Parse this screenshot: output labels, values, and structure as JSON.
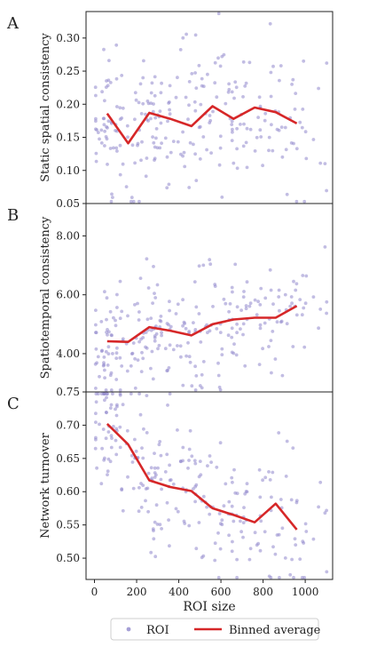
{
  "chart_data": [
    {
      "type": "scatter",
      "panel_label": "A",
      "ylabel": "Static spatial consistency",
      "xlim": [
        -40,
        1130
      ],
      "ylim": [
        0.05,
        0.34
      ],
      "yticks": [
        0.05,
        0.1,
        0.15,
        0.2,
        0.25,
        0.3
      ],
      "ytick_labels": [
        "0.05",
        "0.10",
        "0.15",
        "0.20",
        "0.25",
        "0.30"
      ],
      "grid": false,
      "series": [
        {
          "name": "Binned average",
          "x": [
            60,
            160,
            260,
            360,
            460,
            560,
            660,
            760,
            860,
            960
          ],
          "y": [
            0.186,
            0.141,
            0.187,
            0.178,
            0.167,
            0.197,
            0.178,
            0.195,
            0.188,
            0.171
          ]
        }
      ]
    },
    {
      "type": "scatter",
      "panel_label": "B",
      "ylabel": "Spatiotemporal consistency",
      "xlim": [
        -40,
        1130
      ],
      "ylim": [
        2.7,
        9.1
      ],
      "yticks": [
        4.0,
        6.0,
        8.0
      ],
      "ytick_labels": [
        "4.00",
        "6.00",
        "8.00"
      ],
      "grid": false,
      "series": [
        {
          "name": "Binned average",
          "x": [
            60,
            160,
            260,
            360,
            460,
            560,
            660,
            760,
            860,
            960
          ],
          "y": [
            4.42,
            4.4,
            4.9,
            4.78,
            4.62,
            5.0,
            5.16,
            5.22,
            5.22,
            5.62
          ]
        }
      ]
    },
    {
      "type": "scatter",
      "panel_label": "C",
      "ylabel": "Network turnover",
      "xlabel": "ROI size",
      "xlim": [
        -40,
        1130
      ],
      "xticks": [
        0,
        200,
        400,
        600,
        800,
        1000
      ],
      "xtick_labels": [
        "0",
        "200",
        "400",
        "600",
        "800",
        "1000"
      ],
      "ylim": [
        0.468,
        0.75
      ],
      "yticks": [
        0.5,
        0.55,
        0.6,
        0.65,
        0.7,
        0.75
      ],
      "ytick_labels": [
        "0.50",
        "0.55",
        "0.60",
        "0.65",
        "0.70",
        "0.75"
      ],
      "grid": false,
      "series": [
        {
          "name": "Binned average",
          "x": [
            60,
            160,
            260,
            360,
            460,
            560,
            660,
            760,
            860,
            960
          ],
          "y": [
            0.702,
            0.671,
            0.617,
            0.607,
            0.601,
            0.575,
            0.565,
            0.554,
            0.582,
            0.543
          ]
        }
      ]
    }
  ],
  "legend": {
    "placement": "bottom",
    "items": [
      {
        "label": "ROI",
        "marker": "dot",
        "color": "#8f87cc"
      },
      {
        "label": "Binned average",
        "marker": "line",
        "color": "#d62728"
      }
    ]
  },
  "colors": {
    "scatter": "#8f87cc",
    "average": "#d62728"
  }
}
